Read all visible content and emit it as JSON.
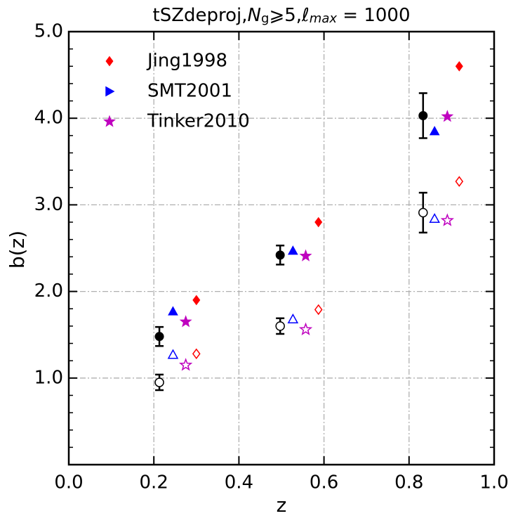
{
  "chart_data": {
    "type": "scatter",
    "title": [
      "tSZdeproj,",
      "N",
      "g",
      "⩾5,",
      "ℓ",
      "max",
      " = 1000"
    ],
    "x_label": "z",
    "y_label": "b(z)",
    "xlim": [
      0,
      1
    ],
    "ylim": [
      0,
      5
    ],
    "xticks": [
      {
        "value": 0,
        "label": "0.0"
      },
      0.2,
      0.4,
      0.6,
      0.8,
      {
        "value": 1,
        "label": "1.0"
      }
    ],
    "yticks": [
      {
        "value": 1,
        "label": "1.0"
      },
      {
        "value": 2,
        "label": "2.0"
      },
      {
        "value": 3,
        "label": "3.0"
      },
      {
        "value": 4,
        "label": "4.0"
      },
      {
        "value": 5,
        "label": "5.0"
      }
    ],
    "yminorticks": [
      0.2,
      0.4,
      0.6,
      0.8,
      1.2,
      1.4,
      1.6,
      1.8,
      2.2,
      2.4,
      2.6,
      2.8,
      3.2,
      3.4,
      3.6,
      3.8,
      4.2,
      4.4,
      4.6,
      4.8
    ],
    "grid": true,
    "legend_loc": "upper left",
    "series": [
      {
        "color": "#000000",
        "marker": "circle",
        "filled": true,
        "x": [
          0.213,
          0.497,
          0.833
        ],
        "values": [
          1.48,
          2.42,
          4.03
        ],
        "errors": [
          0.11,
          0.11,
          0.26
        ]
      },
      {
        "color": "#000000",
        "marker": "circle",
        "filled": false,
        "x": [
          0.213,
          0.497,
          0.833
        ],
        "values": [
          0.95,
          1.6,
          2.91
        ],
        "errors": [
          0.09,
          0.09,
          0.23
        ]
      },
      {
        "name": "Jing1998",
        "color": "#ff0000",
        "marker": "diamond",
        "legend_marker": "diamond",
        "filled": true,
        "x": [
          0.3,
          0.587,
          0.918
        ],
        "values": [
          1.9,
          2.8,
          4.6
        ]
      },
      {
        "name": "SMT2001",
        "color": "#0000ff",
        "marker": "triangle-up",
        "legend_marker": "triangle-right",
        "filled": true,
        "x": [
          0.245,
          0.527,
          0.86
        ],
        "values": [
          1.77,
          2.47,
          3.85
        ]
      },
      {
        "name": "Tinker2010",
        "color": "#bf00bf",
        "marker": "star",
        "legend_marker": "star",
        "filled": true,
        "x": [
          0.275,
          0.557,
          0.89
        ],
        "values": [
          1.65,
          2.41,
          4.02
        ]
      },
      {
        "color": "#ff0000",
        "marker": "diamond",
        "filled": false,
        "x": [
          0.3,
          0.587,
          0.918
        ],
        "values": [
          1.28,
          1.79,
          3.27
        ]
      },
      {
        "color": "#0000ff",
        "marker": "triangle-up",
        "filled": false,
        "x": [
          0.245,
          0.527,
          0.86
        ],
        "values": [
          1.27,
          1.68,
          2.84
        ]
      },
      {
        "color": "#bf00bf",
        "marker": "star",
        "filled": false,
        "x": [
          0.275,
          0.557,
          0.89
        ],
        "values": [
          1.15,
          1.56,
          2.82
        ]
      }
    ]
  }
}
